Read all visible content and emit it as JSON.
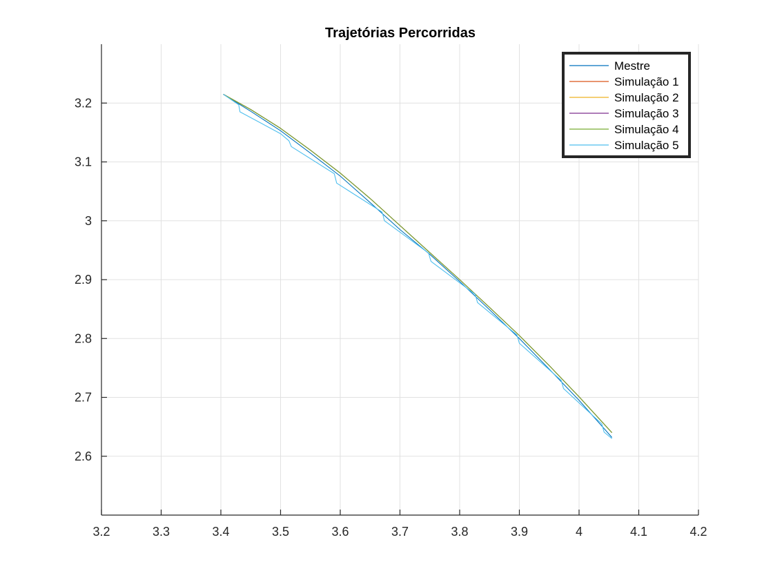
{
  "chart_data": {
    "type": "line",
    "title": "Trajetórias Percorridas",
    "xlabel": "",
    "ylabel": "",
    "xlim": [
      3.2,
      4.2
    ],
    "ylim": [
      2.5,
      3.3
    ],
    "xticks": [
      "3.2",
      "3.3",
      "3.4",
      "3.5",
      "3.6",
      "3.7",
      "3.8",
      "3.9",
      "4",
      "4.1",
      "4.2"
    ],
    "yticks": [
      "2.6",
      "2.7",
      "2.8",
      "2.9",
      "3",
      "3.1",
      "3.2"
    ],
    "grid": true,
    "legend_position": "top-right",
    "series": [
      {
        "name": "Mestre",
        "color": "#0072bd",
        "x": [
          3.404,
          3.45,
          3.5,
          3.55,
          3.6,
          3.65,
          3.7,
          3.75,
          3.8,
          3.85,
          3.9,
          3.95,
          4.0,
          4.055
        ],
        "y": [
          3.215,
          3.186,
          3.153,
          3.115,
          3.076,
          3.031,
          2.985,
          2.943,
          2.897,
          2.849,
          2.8,
          2.748,
          2.695,
          2.632
        ]
      },
      {
        "name": "Simulação 1",
        "color": "#d95319",
        "x": [
          3.404,
          3.45,
          3.5,
          3.55,
          3.6,
          3.65,
          3.7,
          3.75,
          3.8,
          3.85,
          3.9,
          3.95,
          4.0,
          4.055
        ],
        "y": [
          3.215,
          3.189,
          3.157,
          3.12,
          3.081,
          3.038,
          2.992,
          2.946,
          2.9,
          2.853,
          2.805,
          2.754,
          2.701,
          2.64
        ]
      },
      {
        "name": "Simulação 2",
        "color": "#edb120",
        "x": [
          3.404,
          3.45,
          3.5,
          3.55,
          3.6,
          3.65,
          3.7,
          3.75,
          3.8,
          3.85,
          3.9,
          3.95,
          4.0,
          4.055
        ],
        "y": [
          3.215,
          3.189,
          3.157,
          3.12,
          3.081,
          3.038,
          2.992,
          2.946,
          2.9,
          2.853,
          2.805,
          2.754,
          2.701,
          2.64
        ]
      },
      {
        "name": "Simulação 3",
        "color": "#7e2f8e",
        "x": [
          3.404,
          3.45,
          3.5,
          3.55,
          3.6,
          3.65,
          3.7,
          3.75,
          3.8,
          3.85,
          3.9,
          3.95,
          4.0,
          4.055
        ],
        "y": [
          3.215,
          3.189,
          3.157,
          3.12,
          3.081,
          3.038,
          2.992,
          2.946,
          2.9,
          2.853,
          2.805,
          2.754,
          2.701,
          2.64
        ]
      },
      {
        "name": "Simulação 4",
        "color": "#77ac30",
        "x": [
          3.404,
          3.45,
          3.5,
          3.55,
          3.6,
          3.65,
          3.7,
          3.75,
          3.8,
          3.85,
          3.9,
          3.95,
          4.0,
          4.055
        ],
        "y": [
          3.215,
          3.189,
          3.157,
          3.12,
          3.081,
          3.038,
          2.992,
          2.946,
          2.9,
          2.853,
          2.805,
          2.754,
          2.701,
          2.64
        ]
      },
      {
        "name": "Simulação 5",
        "color": "#4dbeee",
        "x": [
          3.404,
          3.43,
          3.432,
          3.5,
          3.514,
          3.518,
          3.59,
          3.592,
          3.594,
          3.67,
          3.672,
          3.674,
          3.748,
          3.75,
          3.752,
          3.826,
          3.828,
          3.83,
          3.896,
          3.898,
          3.9,
          3.97,
          3.972,
          3.974,
          4.038,
          4.04,
          4.042,
          4.055
        ],
        "y": [
          3.215,
          3.197,
          3.185,
          3.148,
          3.136,
          3.126,
          3.08,
          3.072,
          3.064,
          3.015,
          3.008,
          3.0,
          2.945,
          2.938,
          2.931,
          2.875,
          2.868,
          2.861,
          2.806,
          2.799,
          2.792,
          2.729,
          2.722,
          2.715,
          2.655,
          2.648,
          2.641,
          2.63
        ]
      }
    ]
  }
}
